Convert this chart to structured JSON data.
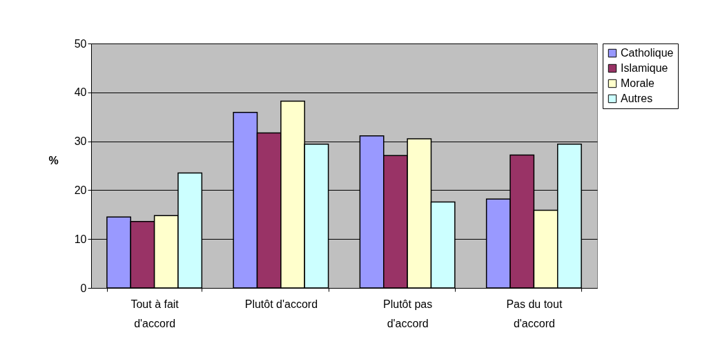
{
  "chart_data": {
    "type": "bar",
    "ylabel": "%",
    "categories": [
      "Tout à fait d'accord",
      "Plutôt d'accord",
      "Plutôt pas d'accord",
      "Pas du tout d'accord"
    ],
    "series": [
      {
        "name": "Catholique",
        "color": "#9999ff",
        "values": [
          14.5,
          35.9,
          31.1,
          18.2
        ]
      },
      {
        "name": "Islamique",
        "color": "#993366",
        "values": [
          13.6,
          31.7,
          27.1,
          27.2
        ]
      },
      {
        "name": "Morale",
        "color": "#ffffcc",
        "values": [
          14.8,
          38.2,
          30.5,
          15.9
        ]
      },
      {
        "name": "Autres",
        "color": "#ccffff",
        "values": [
          23.5,
          29.4,
          17.6,
          29.4
        ]
      }
    ],
    "ylim": [
      0,
      50
    ],
    "yticks": [
      0,
      10,
      20,
      30,
      40,
      50
    ],
    "grid": "y",
    "legend": "right"
  }
}
